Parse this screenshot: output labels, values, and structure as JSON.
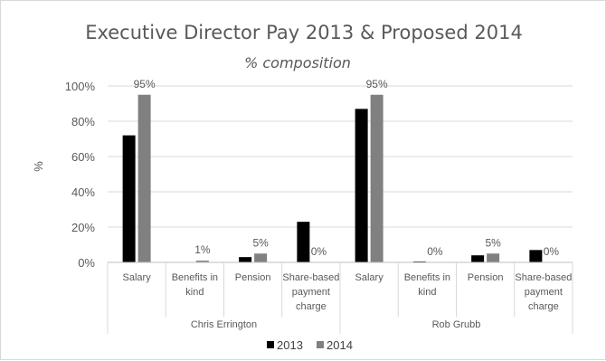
{
  "chart_data": {
    "type": "bar",
    "title": "Executive Director Pay 2013 & Proposed  2014",
    "subtitle": "% composition",
    "ylabel": "%",
    "ylim": [
      0,
      100
    ],
    "yticks": [
      "0%",
      "20%",
      "40%",
      "60%",
      "80%",
      "100%"
    ],
    "groups": [
      {
        "name": "Chris Errington",
        "categories": [
          "Salary",
          "Benefits in kind",
          "Pension",
          "Share-based payment charge"
        ]
      },
      {
        "name": "Rob Grubb",
        "categories": [
          "Salary",
          "Benefits in kind",
          "Pension",
          "Share-based payment charge"
        ]
      }
    ],
    "series": [
      {
        "name": "2013",
        "color": "#000000",
        "values": [
          72,
          0,
          3,
          23,
          87,
          0.5,
          4,
          7
        ]
      },
      {
        "name": "2014",
        "color": "#808080",
        "values": [
          95,
          1,
          5,
          0,
          95,
          0,
          5,
          0
        ],
        "data_labels": [
          "95%",
          "1%",
          "5%",
          "0%",
          "95%",
          "0%",
          "5%",
          "0%"
        ]
      }
    ],
    "grid": true,
    "legend_position": "bottom"
  }
}
